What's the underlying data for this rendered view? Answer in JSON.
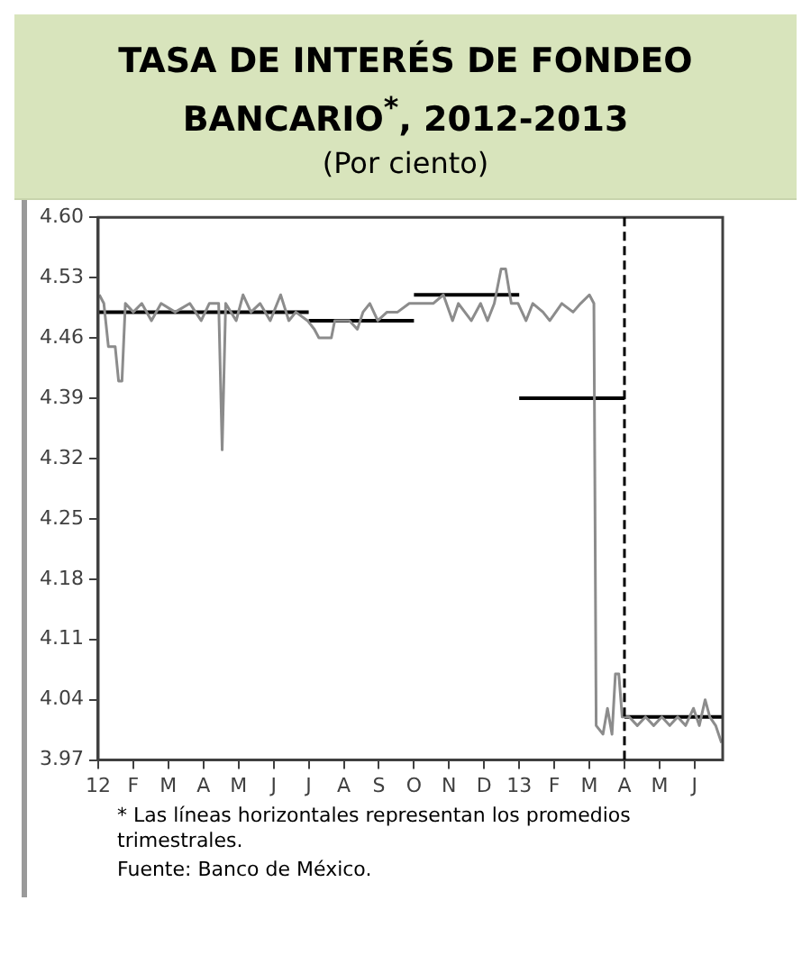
{
  "chart_data": {
    "type": "line",
    "title": "TASA DE INTERÉS DE FONDEO BANCARIO$^{*}$, 2012-2013",
    "subtitle": "(Por ciento)",
    "annotations": [
      "* Las líneas horizontales representan los promedios trimestrales.",
      "Fuente: Banco de México."
    ],
    "xlim": [
      "2012-01-01",
      "2013-06-25"
    ],
    "xticks": [
      {
        "value": "2012-01-01",
        "label": "12"
      },
      {
        "value": "2012-02-01",
        "label": "F"
      },
      {
        "value": "2012-03-01",
        "label": "M"
      },
      {
        "value": "2012-04-01",
        "label": "A"
      },
      {
        "value": "2012-05-01",
        "label": "M"
      },
      {
        "value": "2012-06-01",
        "label": "J"
      },
      {
        "value": "2012-07-01",
        "label": "J"
      },
      {
        "value": "2012-08-01",
        "label": "A"
      },
      {
        "value": "2012-09-01",
        "label": "S"
      },
      {
        "value": "2012-10-01",
        "label": "O"
      },
      {
        "value": "2012-11-01",
        "label": "N"
      },
      {
        "value": "2012-12-01",
        "label": "D"
      },
      {
        "value": "2013-01-01",
        "label": "13"
      },
      {
        "value": "2013-02-01",
        "label": "F"
      },
      {
        "value": "2013-03-01",
        "label": "M"
      },
      {
        "value": "2013-04-01",
        "label": "A"
      },
      {
        "value": "2013-05-01",
        "label": "M"
      },
      {
        "value": "2013-06-01",
        "label": "J"
      }
    ],
    "ylim": [
      3.97,
      4.6
    ],
    "yticks": [
      3.97,
      4.04,
      4.11,
      4.18,
      4.25,
      4.32,
      4.39,
      4.46,
      4.53,
      {
        "value": 4.6,
        "label": "4.60"
      }
    ],
    "grid": false,
    "legend": false,
    "marker": "none",
    "line_style": "solid",
    "ref_lines": [
      {
        "axis": "x",
        "value": "2013-04-01",
        "label": null,
        "color": "#000000",
        "line_style": "dashed"
      }
    ],
    "series": [
      {
        "color": "#8c8c8c",
        "x": [
          "2012-01-02",
          "2012-01-06",
          "2012-01-10",
          "2012-01-16",
          "2012-01-19",
          "2012-01-22",
          "2012-01-25",
          "2012-02-01",
          "2012-02-08",
          "2012-02-16",
          "2012-02-24",
          "2012-03-07",
          "2012-03-20",
          "2012-03-30",
          "2012-04-06",
          "2012-04-14",
          "2012-04-17",
          "2012-04-20",
          "2012-04-29",
          "2012-05-05",
          "2012-05-12",
          "2012-05-20",
          "2012-05-29",
          "2012-06-07",
          "2012-06-14",
          "2012-06-20",
          "2012-06-30",
          "2012-07-06",
          "2012-07-10",
          "2012-07-21",
          "2012-07-24",
          "2012-08-06",
          "2012-08-13",
          "2012-08-18",
          "2012-08-24",
          "2012-08-31",
          "2012-09-08",
          "2012-09-17",
          "2012-09-27",
          "2012-10-06",
          "2012-10-18",
          "2012-10-27",
          "2012-11-04",
          "2012-11-09",
          "2012-11-20",
          "2012-11-28",
          "2012-12-04",
          "2012-12-10",
          "2012-12-16",
          "2012-12-20",
          "2012-12-25",
          "2012-12-31",
          "2013-01-07",
          "2013-01-13",
          "2013-01-22",
          "2013-01-28",
          "2013-02-07",
          "2013-02-16",
          "2013-02-22",
          "2013-03-01",
          "2013-03-05",
          "2013-03-07",
          "2013-03-13",
          "2013-03-17",
          "2013-03-21",
          "2013-03-24",
          "2013-03-27",
          "2013-03-30",
          "2013-04-05",
          "2013-04-12",
          "2013-04-19",
          "2013-04-26",
          "2013-05-03",
          "2013-05-10",
          "2013-05-17",
          "2013-05-24",
          "2013-05-31",
          "2013-06-05",
          "2013-06-10",
          "2013-06-14",
          "2013-06-19",
          "2013-06-24"
        ],
        "values": [
          4.51,
          4.5,
          4.45,
          4.45,
          4.41,
          4.41,
          4.5,
          4.49,
          4.5,
          4.48,
          4.5,
          4.49,
          4.5,
          4.48,
          4.5,
          4.5,
          4.33,
          4.5,
          4.48,
          4.51,
          4.49,
          4.5,
          4.48,
          4.51,
          4.48,
          4.49,
          4.48,
          4.47,
          4.46,
          4.46,
          4.48,
          4.48,
          4.47,
          4.49,
          4.5,
          4.48,
          4.49,
          4.49,
          4.5,
          4.5,
          4.5,
          4.51,
          4.48,
          4.5,
          4.48,
          4.5,
          4.48,
          4.5,
          4.54,
          4.54,
          4.5,
          4.5,
          4.48,
          4.5,
          4.49,
          4.48,
          4.5,
          4.49,
          4.5,
          4.51,
          4.5,
          4.01,
          4.0,
          4.03,
          4.0,
          4.07,
          4.07,
          4.02,
          4.02,
          4.01,
          4.02,
          4.01,
          4.02,
          4.01,
          4.02,
          4.01,
          4.03,
          4.01,
          4.04,
          4.02,
          4.01,
          3.99
        ]
      },
      {
        "color": "#000000",
        "x": [
          "2012-01-01",
          "2012-07-01"
        ],
        "values": [
          4.49,
          4.49
        ]
      },
      {
        "color": "#000000",
        "x": [
          "2012-07-01",
          "2012-10-01"
        ],
        "values": [
          4.48,
          4.48
        ]
      },
      {
        "color": "#000000",
        "x": [
          "2012-10-01",
          "2013-01-01"
        ],
        "values": [
          4.51,
          4.51
        ]
      },
      {
        "color": "#000000",
        "x": [
          "2013-01-01",
          "2013-04-01"
        ],
        "values": [
          4.39,
          4.39
        ]
      },
      {
        "color": "#000000",
        "x": [
          "2013-04-01",
          "2013-06-25"
        ],
        "values": [
          4.02,
          4.02
        ]
      }
    ]
  }
}
